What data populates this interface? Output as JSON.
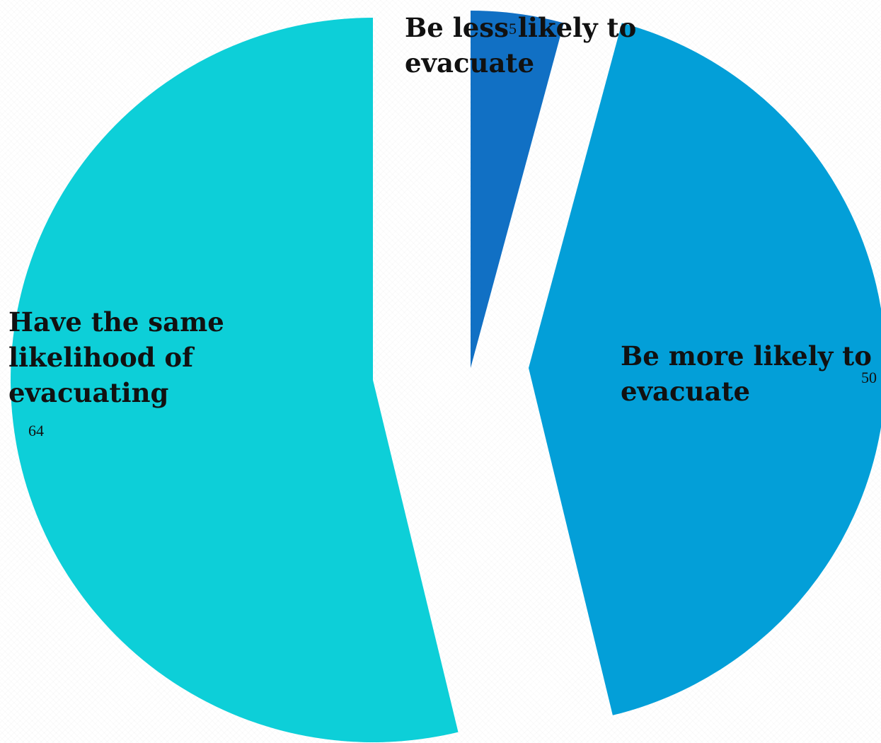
{
  "chart_data": {
    "type": "pie",
    "exploded": true,
    "start_angle_deg": 0,
    "direction": "clockwise",
    "slices": [
      {
        "label": "Be less likely to evacuate",
        "value": 5,
        "color": "#1170C4"
      },
      {
        "label": "Be more likely to evacuate",
        "value": 50,
        "color": "#039FD8"
      },
      {
        "label": "Have the same likelihood of evacuating",
        "value": 64,
        "color": "#0DCFD8"
      }
    ],
    "title": "",
    "legend": "none"
  }
}
